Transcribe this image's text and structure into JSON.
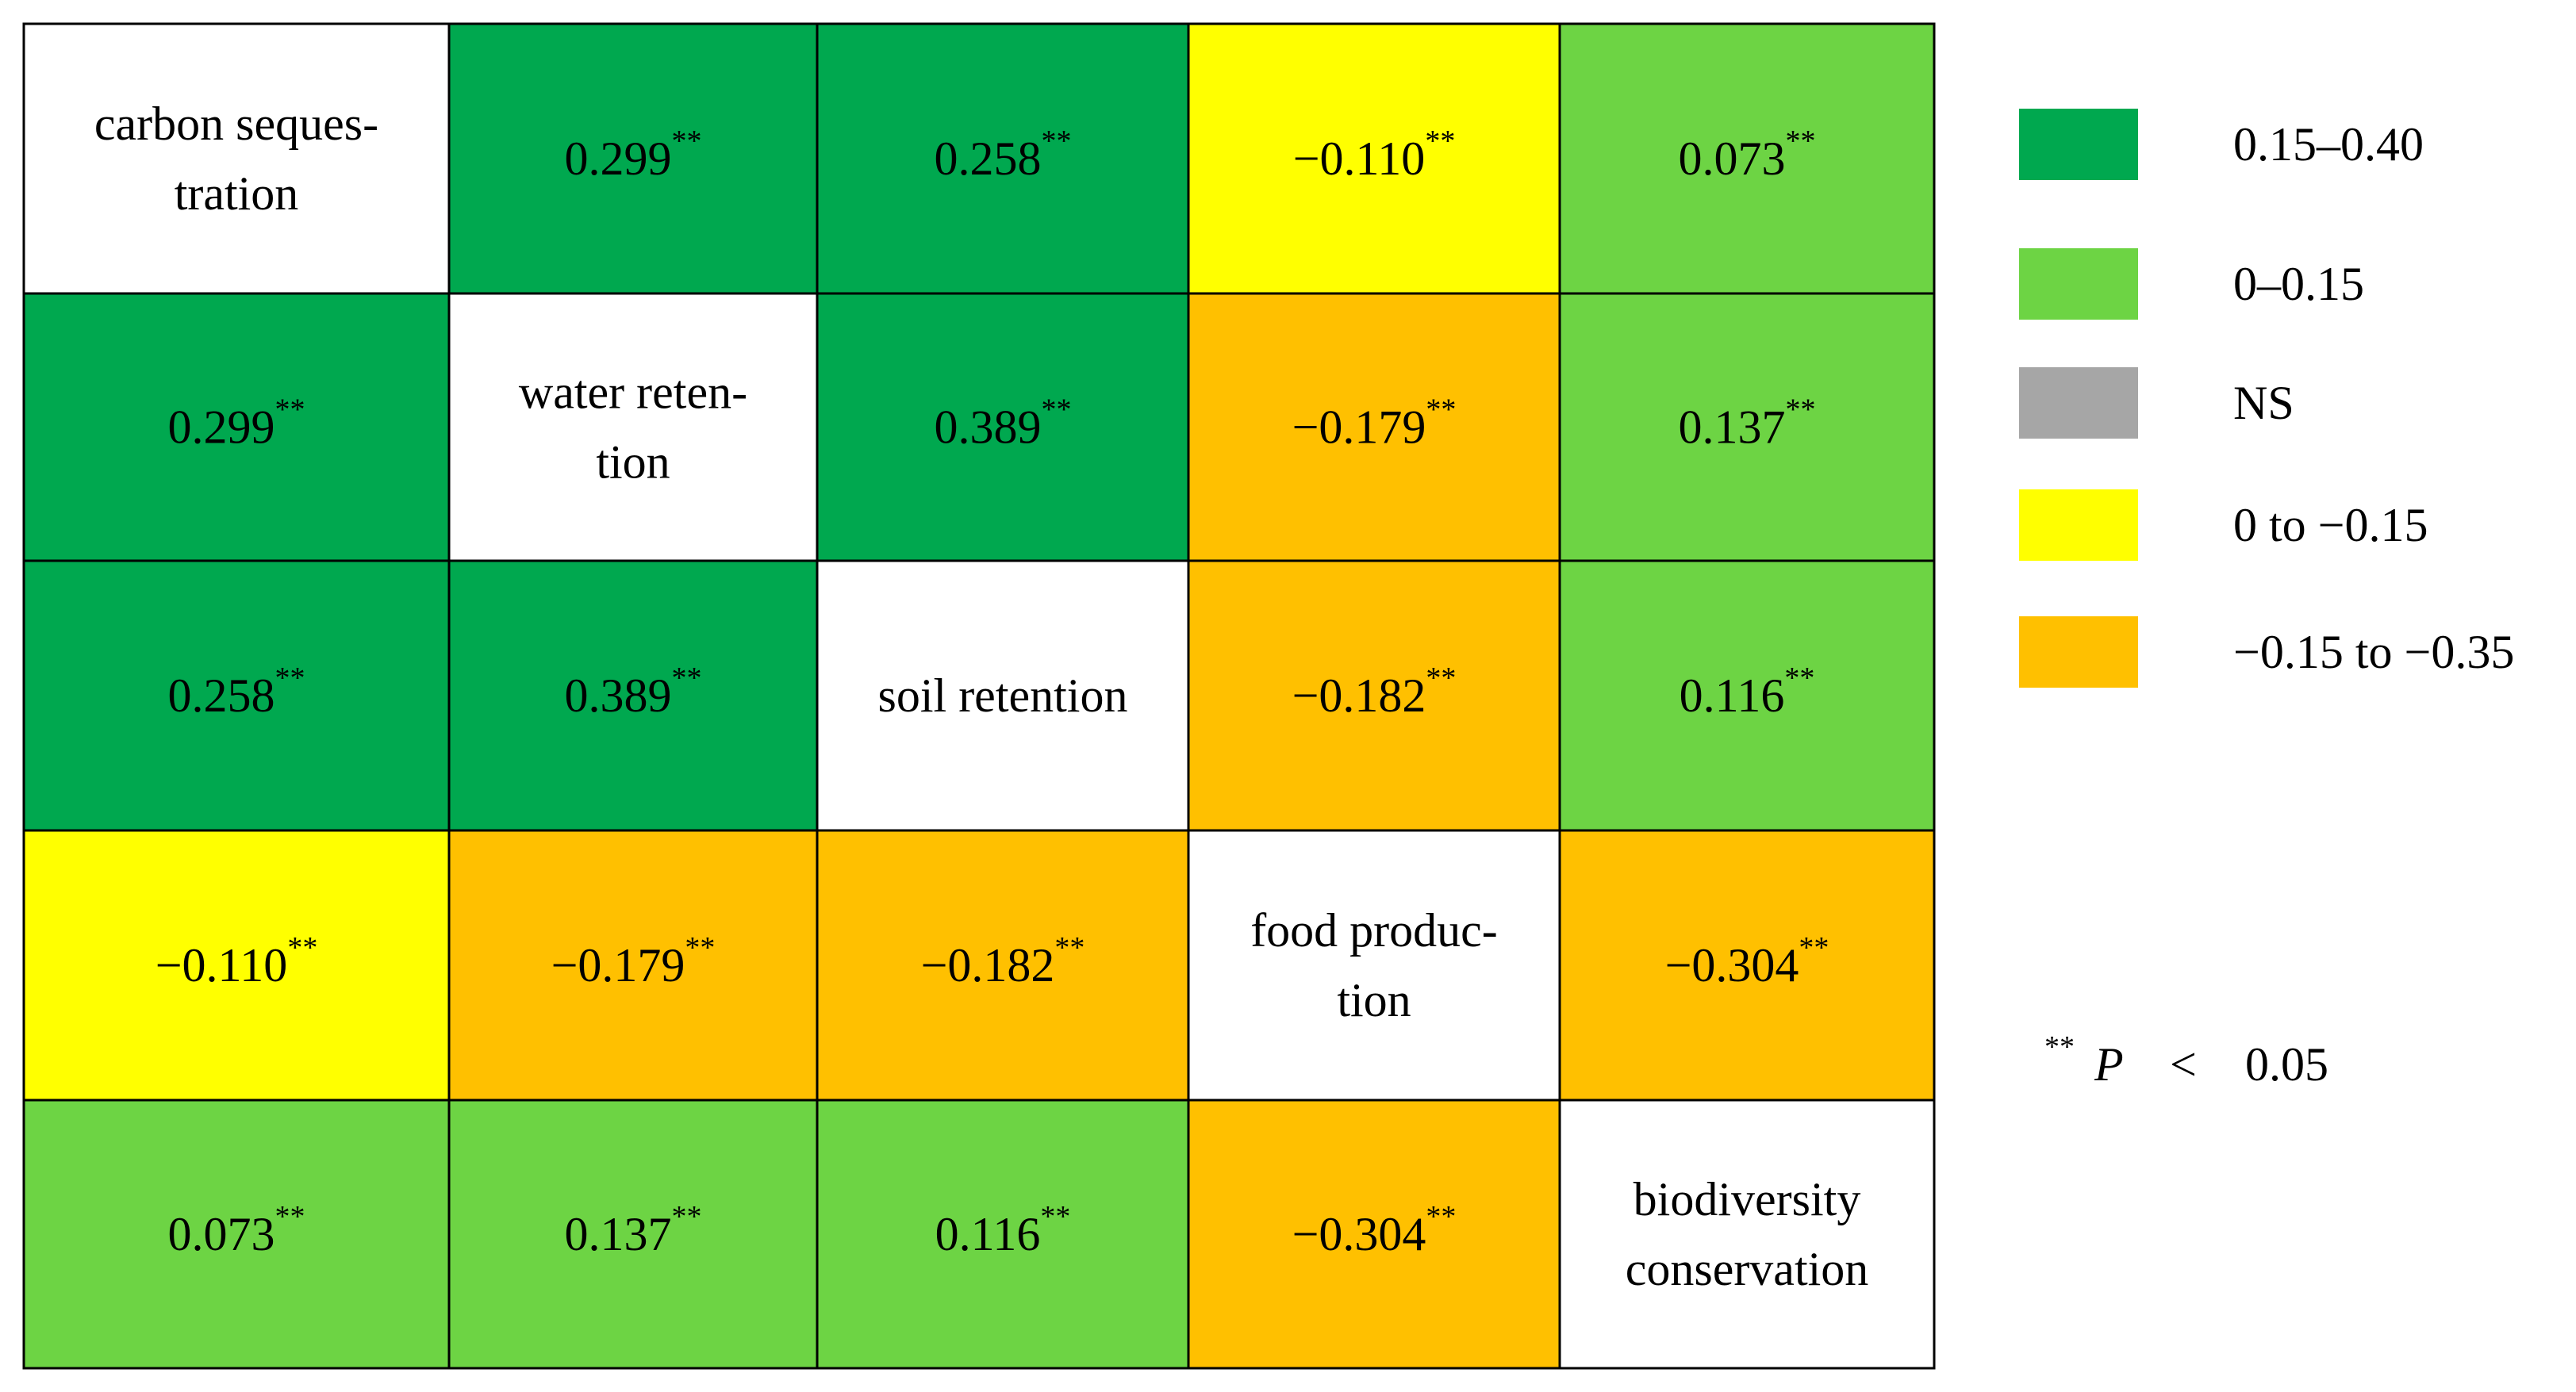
{
  "chart_data": {
    "type": "heatmap",
    "variables": [
      [
        "carbon seques-",
        "tration"
      ],
      [
        "water reten-",
        "tion"
      ],
      [
        "soil retention"
      ],
      [
        "food produc-",
        "tion"
      ],
      [
        "biodiversity",
        "conservation"
      ]
    ],
    "matrix": [
      [
        null,
        0.299,
        0.258,
        -0.11,
        0.073
      ],
      [
        0.299,
        null,
        0.389,
        -0.179,
        0.137
      ],
      [
        0.258,
        0.389,
        null,
        -0.182,
        0.116
      ],
      [
        -0.11,
        -0.179,
        -0.182,
        null,
        -0.304
      ],
      [
        0.073,
        0.137,
        0.116,
        -0.304,
        null
      ]
    ],
    "cell_labels": [
      [
        null,
        "0.299",
        "0.258",
        "−0.110",
        "0.073"
      ],
      [
        "0.299",
        null,
        "0.389",
        "−0.179",
        "0.137"
      ],
      [
        "0.258",
        "0.389",
        null,
        "−0.182",
        "0.116"
      ],
      [
        "−0.110",
        "−0.179",
        "−0.182",
        null,
        "−0.304"
      ],
      [
        "0.073",
        "0.137",
        "0.116",
        "−0.304",
        null
      ]
    ],
    "significance_marker": "**",
    "legend": [
      {
        "label": "0.15–0.40",
        "color": "#00a84f",
        "range": [
          0.15,
          0.4
        ]
      },
      {
        "label": "0–0.15",
        "color": "#6dd444",
        "range": [
          0,
          0.15
        ]
      },
      {
        "label": "NS",
        "color": "#a6a6a6",
        "range": null
      },
      {
        "label": "0 to −0.15",
        "color": "#ffff00",
        "range": [
          -0.15,
          0
        ]
      },
      {
        "label": "−0.15 to −0.35",
        "color": "#ffc000",
        "range": [
          -0.35,
          -0.15
        ]
      }
    ],
    "note": {
      "marker": "**",
      "symbol": "P",
      "operator": "<",
      "value": "0.05"
    },
    "diagonal_color": "#ffffff",
    "legend_placement": "right"
  }
}
